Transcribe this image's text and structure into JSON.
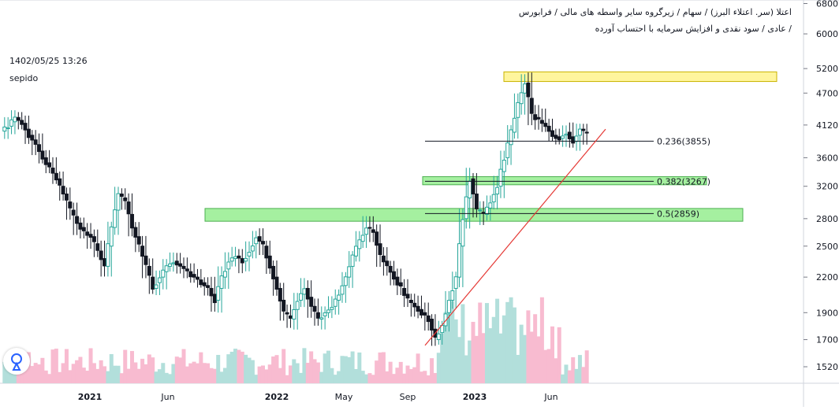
{
  "header": {
    "line1": "اعتلا (سر. اعتلاء البرز) / سهام / زیرگروه سایر واسطه های مالی / فرابورس",
    "line2": "/ عادی / سود نقدی و افزایش سرمایه با احتساب آورده"
  },
  "info": {
    "datetime": "1402/05/25 13:26",
    "author": "sepido"
  },
  "colors": {
    "up": "#26a69a",
    "down": "#131722",
    "trend": "#e53935",
    "vol_up": "#b2dfdb",
    "vol_down": "#f8bbd0",
    "resistance": "#fff59d",
    "support": "#a5f0a0"
  },
  "icons": {
    "logo": "tradingview-logo-icon"
  },
  "chart_data": {
    "type": "candlestick",
    "price_scale": "log",
    "ylim": [
      1420,
      6900
    ],
    "y_ticks": [
      6800,
      6000,
      5200,
      4700,
      4120,
      3600,
      3200,
      2800,
      2500,
      2200,
      1900,
      1700,
      1520
    ],
    "x_labels": [
      "2021",
      "Jun",
      "2022",
      "May",
      "Sep",
      "2023",
      "Jun"
    ],
    "close_series": [
      4100,
      4250,
      4150,
      3950,
      3800,
      3600,
      3450,
      3300,
      3100,
      2900,
      2750,
      2650,
      2600,
      2450,
      2300,
      2700,
      3100,
      3000,
      2700,
      2500,
      2300,
      2100,
      2200,
      2300,
      2350,
      2300,
      2250,
      2200,
      2150,
      2100,
      2000,
      2200,
      2350,
      2400,
      2350,
      2450,
      2600,
      2500,
      2300,
      2100,
      1900,
      1850,
      2000,
      2100,
      1950,
      1850,
      1900,
      1950,
      2050,
      2200,
      2400,
      2550,
      2700,
      2650,
      2400,
      2300,
      2200,
      2100,
      2000,
      1950,
      1900,
      1850,
      1700,
      1800,
      2000,
      2200,
      2800,
      3300,
      2900,
      2850,
      3000,
      3200,
      3600,
      4000,
      4500,
      4900,
      4300,
      4200,
      4100,
      3950,
      3900,
      4000,
      3850,
      4050,
      3950
    ],
    "fibonacci": [
      {
        "label": "0.236(3855)",
        "value": 3855
      },
      {
        "label": "0.382(3267)",
        "value": 3267
      },
      {
        "label": "0.5(2859)",
        "value": 2859
      }
    ],
    "zones": [
      {
        "type": "resistance",
        "low": 4930,
        "high": 5130
      },
      {
        "type": "support",
        "low": 3220,
        "high": 3330
      },
      {
        "type": "support",
        "low": 2770,
        "high": 2920
      }
    ],
    "trendline": {
      "from": 1660,
      "to": 4050
    }
  }
}
